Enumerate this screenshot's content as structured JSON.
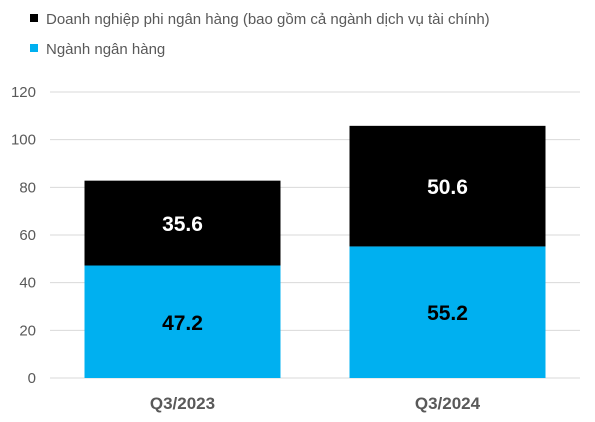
{
  "chart_data": {
    "type": "bar",
    "stacked": true,
    "categories": [
      "Q3/2023",
      "Q3/2024"
    ],
    "series": [
      {
        "name": "Ngành ngân hàng",
        "values": [
          47.2,
          55.2
        ],
        "color": "#00b0f0",
        "label_color": "#000000"
      },
      {
        "name": "Doanh nghiệp phi ngân hàng (bao gồm cả ngành dịch vụ tài chính)",
        "values": [
          35.6,
          50.6
        ],
        "color": "#000000",
        "label_color": "#ffffff"
      }
    ],
    "legend_order": [
      1,
      0
    ],
    "legend_position": "top-left",
    "y_ticks": [
      "0",
      "20",
      "40",
      "60",
      "80",
      "100",
      "120"
    ],
    "ylim": [
      0,
      120
    ],
    "grid": true
  }
}
